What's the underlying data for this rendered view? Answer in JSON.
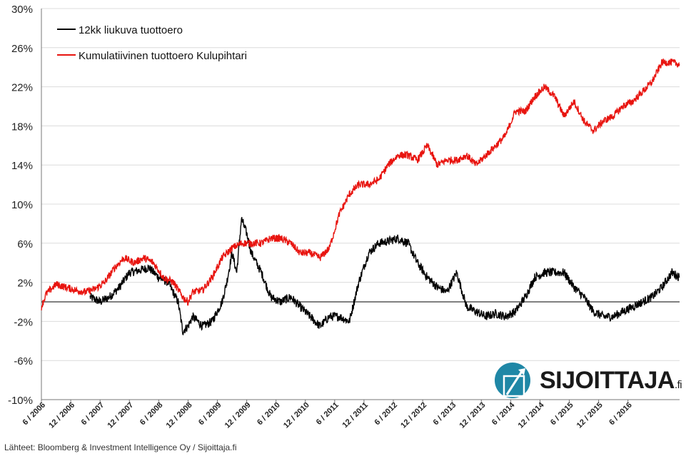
{
  "chart_data": {
    "type": "line",
    "title": "",
    "xlabel": "",
    "ylabel": "",
    "ylim": [
      -10,
      30
    ],
    "y_ticks": [
      -10,
      -6,
      -2,
      2,
      6,
      10,
      14,
      18,
      22,
      26,
      30
    ],
    "y_tick_labels": [
      "-10%",
      "-6%",
      "-2%",
      "2%",
      "6%",
      "10%",
      "14%",
      "18%",
      "22%",
      "26%",
      "30%"
    ],
    "x_range": [
      2006.42,
      2017.3
    ],
    "x_ticks": [
      2006.42,
      2006.92,
      2007.42,
      2007.92,
      2008.42,
      2008.92,
      2009.42,
      2009.92,
      2010.42,
      2010.92,
      2011.42,
      2011.92,
      2012.42,
      2012.92,
      2013.42,
      2013.92,
      2014.42,
      2014.92,
      2015.42,
      2015.92,
      2016.42
    ],
    "x_tick_labels": [
      "6 / 2006",
      "12 / 2006",
      "6 / 2007",
      "12 / 2007",
      "6 / 2008",
      "12 / 2008",
      "6 / 2009",
      "12 / 2009",
      "6 / 2010",
      "12 / 2010",
      "6 / 2011",
      "12 / 2011",
      "6 / 2012",
      "12 / 2012",
      "6 / 2013",
      "12 / 2013",
      "6 / 2014",
      "12 / 2014",
      "6 / 2015",
      "12 / 2015",
      "6 / 2016"
    ],
    "grid": true,
    "legend_position": "top-left",
    "series": [
      {
        "name": "12kk liukuva tuottoero",
        "color": "#000000",
        "x": [
          2007.25,
          2007.42,
          2007.58,
          2007.75,
          2007.92,
          2008.08,
          2008.25,
          2008.42,
          2008.58,
          2008.75,
          2008.83,
          2008.92,
          2009.0,
          2009.17,
          2009.33,
          2009.5,
          2009.58,
          2009.67,
          2009.75,
          2009.83,
          2009.92,
          2010.0,
          2010.17,
          2010.33,
          2010.5,
          2010.67,
          2010.83,
          2011.0,
          2011.17,
          2011.33,
          2011.5,
          2011.67,
          2011.83,
          2012.0,
          2012.17,
          2012.33,
          2012.5,
          2012.67,
          2012.83,
          2013.0,
          2013.17,
          2013.33,
          2013.5,
          2013.67,
          2013.83,
          2014.0,
          2014.17,
          2014.33,
          2014.5,
          2014.67,
          2014.83,
          2015.0,
          2015.17,
          2015.33,
          2015.5,
          2015.67,
          2015.83,
          2016.0,
          2016.17,
          2016.33,
          2016.5,
          2016.67,
          2016.83,
          2017.0,
          2017.17,
          2017.3
        ],
        "values": [
          0.5,
          0.0,
          0.5,
          1.5,
          3.0,
          3.2,
          3.5,
          2.5,
          2.0,
          0.0,
          -3.0,
          -2.5,
          -1.5,
          -2.5,
          -2.0,
          0.0,
          2.0,
          5.0,
          3.0,
          8.5,
          7.0,
          5.0,
          3.0,
          0.5,
          0.0,
          0.5,
          -0.5,
          -1.5,
          -2.5,
          -1.5,
          -1.5,
          -2.0,
          2.0,
          5.0,
          6.0,
          6.2,
          6.5,
          6.0,
          4.0,
          2.5,
          1.5,
          1.0,
          3.0,
          -0.5,
          -1.0,
          -1.5,
          -1.2,
          -1.5,
          -1.0,
          0.5,
          2.5,
          3.0,
          3.0,
          3.0,
          1.5,
          0.5,
          -1.0,
          -1.5,
          -1.5,
          -1.0,
          -0.5,
          0.0,
          0.5,
          1.5,
          3.0,
          2.5
        ]
      },
      {
        "name": "Kumulatiivinen tuottoero Kulupihtari",
        "color": "#e8140f",
        "x": [
          2006.42,
          2006.5,
          2006.67,
          2006.83,
          2007.0,
          2007.17,
          2007.33,
          2007.5,
          2007.67,
          2007.83,
          2008.0,
          2008.17,
          2008.33,
          2008.5,
          2008.67,
          2008.83,
          2008.92,
          2009.0,
          2009.17,
          2009.33,
          2009.5,
          2009.67,
          2009.83,
          2010.0,
          2010.17,
          2010.33,
          2010.5,
          2010.67,
          2010.83,
          2011.0,
          2011.17,
          2011.33,
          2011.5,
          2011.67,
          2011.83,
          2012.0,
          2012.17,
          2012.33,
          2012.5,
          2012.67,
          2012.83,
          2013.0,
          2013.17,
          2013.33,
          2013.5,
          2013.67,
          2013.83,
          2014.0,
          2014.17,
          2014.33,
          2014.5,
          2014.67,
          2014.83,
          2015.0,
          2015.17,
          2015.33,
          2015.5,
          2015.67,
          2015.83,
          2016.0,
          2016.17,
          2016.33,
          2016.5,
          2016.67,
          2016.83,
          2017.0,
          2017.17,
          2017.3
        ],
        "values": [
          -0.5,
          0.8,
          1.8,
          1.5,
          1.2,
          1.0,
          1.3,
          2.0,
          3.5,
          4.5,
          4.0,
          4.5,
          4.0,
          2.5,
          2.0,
          0.5,
          0.0,
          1.0,
          1.2,
          2.5,
          4.5,
          5.5,
          6.0,
          6.0,
          6.0,
          6.5,
          6.5,
          6.0,
          5.0,
          5.0,
          4.5,
          5.5,
          9.0,
          11.0,
          12.0,
          12.0,
          12.5,
          14.0,
          15.0,
          15.0,
          14.5,
          16.0,
          14.0,
          14.5,
          14.5,
          15.0,
          14.0,
          15.0,
          16.0,
          17.0,
          19.5,
          19.5,
          21.0,
          22.0,
          21.0,
          19.0,
          20.5,
          18.5,
          17.5,
          18.5,
          19.0,
          20.0,
          20.5,
          21.5,
          22.5,
          24.5,
          24.5,
          24.3
        ]
      }
    ]
  },
  "source_text": "Lähteet: Bloomberg & Investment Intelligence Oy / Sijoittaja.fi",
  "logo": {
    "name": "SIJOITTAJA",
    "suffix": ".fi",
    "circle_color": "#1f87a6"
  }
}
